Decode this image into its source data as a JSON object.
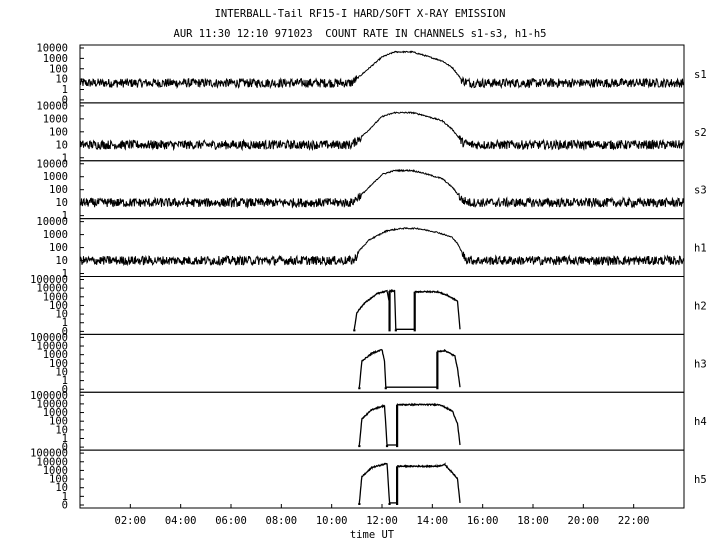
{
  "chart_data": {
    "type": "line",
    "title_line1": "INTERBALL-Tail RF15-I HARD/SOFT X-RAY EMISSION",
    "title_line2": "AUR 11:30 12:10 971023  COUNT RATE IN CHANNELS s1-s3, h1-h5",
    "xlabel": "time UT",
    "x_tick_labels": [
      "02:00",
      "04:00",
      "06:00",
      "08:00",
      "10:00",
      "12:00",
      "14:00",
      "16:00",
      "18:00",
      "20:00",
      "22:00"
    ],
    "x_ticks_hours": [
      2,
      4,
      6,
      8,
      10,
      12,
      14,
      16,
      18,
      20,
      22
    ],
    "xlim_hours": [
      0,
      24
    ],
    "y_scale": "log",
    "panels": [
      {
        "name": "s1",
        "ylim": [
          1,
          10000
        ],
        "y_tick_labels": [
          "10000",
          "1000",
          "100",
          "10",
          "1",
          "0"
        ],
        "profile": [
          [
            0,
            20
          ],
          [
            10.8,
            20
          ],
          [
            11.4,
            200
          ],
          [
            12.0,
            2000
          ],
          [
            12.5,
            5000
          ],
          [
            13.2,
            5000
          ],
          [
            13.6,
            3000
          ],
          [
            14.4,
            1000
          ],
          [
            14.8,
            300
          ],
          [
            15.2,
            30
          ],
          [
            15.5,
            20
          ],
          [
            24,
            20
          ]
        ]
      },
      {
        "name": "s2",
        "ylim": [
          1,
          10000
        ],
        "y_tick_labels": [
          "10000",
          "1000",
          "100",
          "10",
          "1"
        ],
        "profile": [
          [
            0,
            10
          ],
          [
            10.8,
            10
          ],
          [
            11.4,
            100
          ],
          [
            12.0,
            1500
          ],
          [
            12.5,
            3000
          ],
          [
            13.2,
            3000
          ],
          [
            13.6,
            2000
          ],
          [
            14.4,
            700
          ],
          [
            14.8,
            150
          ],
          [
            15.2,
            15
          ],
          [
            15.5,
            10
          ],
          [
            24,
            10
          ]
        ]
      },
      {
        "name": "s3",
        "ylim": [
          1,
          10000
        ],
        "y_tick_labels": [
          "10000",
          "1000",
          "100",
          "10",
          "1"
        ],
        "profile": [
          [
            0,
            10
          ],
          [
            10.8,
            10
          ],
          [
            11.4,
            100
          ],
          [
            12.0,
            1500
          ],
          [
            12.5,
            3000
          ],
          [
            13.2,
            3000
          ],
          [
            13.6,
            2000
          ],
          [
            14.4,
            700
          ],
          [
            14.8,
            150
          ],
          [
            15.2,
            15
          ],
          [
            15.5,
            10
          ],
          [
            24,
            10
          ]
        ]
      },
      {
        "name": "h1",
        "ylim": [
          1,
          10000
        ],
        "y_tick_labels": [
          "10000",
          "1000",
          "100",
          "10",
          "1"
        ],
        "profile": [
          [
            0,
            10
          ],
          [
            10.9,
            10
          ],
          [
            11.1,
            60
          ],
          [
            11.5,
            400
          ],
          [
            12.2,
            2000
          ],
          [
            12.8,
            3000
          ],
          [
            13.4,
            3000
          ],
          [
            14.2,
            1500
          ],
          [
            14.8,
            600
          ],
          [
            15.0,
            200
          ],
          [
            15.3,
            15
          ],
          [
            15.6,
            10
          ],
          [
            24,
            10
          ]
        ]
      },
      {
        "name": "h2",
        "ylim": [
          0.3,
          100000
        ],
        "y_tick_labels": [
          "100000",
          "10000",
          "1000",
          "100",
          "10",
          "1",
          "0"
        ],
        "segments": [
          [
            [
              10.9,
              0.5
            ],
            [
              11.0,
              30
            ],
            [
              11.3,
              300
            ],
            [
              11.8,
              3000
            ],
            [
              12.2,
              6000
            ],
            [
              12.3,
              300
            ]
          ],
          [
            [
              12.3,
              6000
            ],
            [
              12.5,
              6000
            ],
            [
              12.55,
              0.5
            ]
          ],
          [
            [
              12.55,
              0.5
            ],
            [
              13.3,
              0.5
            ]
          ],
          [
            [
              13.3,
              5000
            ],
            [
              14.2,
              5000
            ],
            [
              14.6,
              2000
            ],
            [
              15.0,
              500
            ],
            [
              15.1,
              0.5
            ]
          ]
        ]
      },
      {
        "name": "h3",
        "ylim": [
          0.3,
          100000
        ],
        "y_tick_labels": [
          "100000",
          "10000",
          "1000",
          "100",
          "10",
          "1",
          "0"
        ],
        "segments": [
          [
            [
              11.1,
              0.5
            ],
            [
              11.2,
              300
            ],
            [
              11.6,
              2000
            ],
            [
              12.0,
              5000
            ],
            [
              12.1,
              300
            ],
            [
              12.15,
              0.5
            ]
          ],
          [
            [
              12.15,
              0.5
            ],
            [
              14.2,
              0.5
            ]
          ],
          [
            [
              14.2,
              3000
            ],
            [
              14.5,
              4000
            ],
            [
              14.9,
              1000
            ],
            [
              15.0,
              50
            ],
            [
              15.1,
              0.5
            ]
          ]
        ]
      },
      {
        "name": "h4",
        "ylim": [
          0.3,
          100000
        ],
        "y_tick_labels": [
          "100000",
          "10000",
          "1000",
          "100",
          "10",
          "1",
          "0"
        ],
        "segments": [
          [
            [
              11.1,
              0.5
            ],
            [
              11.2,
              300
            ],
            [
              11.6,
              3000
            ],
            [
              12.1,
              8000
            ],
            [
              12.2,
              0.5
            ]
          ],
          [
            [
              12.2,
              0.5
            ],
            [
              12.6,
              0.5
            ]
          ],
          [
            [
              12.6,
              10000
            ],
            [
              14.3,
              10000
            ],
            [
              14.8,
              2000
            ],
            [
              15.0,
              100
            ],
            [
              15.1,
              0.5
            ]
          ]
        ]
      },
      {
        "name": "h5",
        "ylim": [
          0.3,
          100000
        ],
        "y_tick_labels": [
          "100000",
          "10000",
          "1000",
          "100",
          "10",
          "1",
          "0"
        ],
        "segments": [
          [
            [
              11.1,
              0.5
            ],
            [
              11.2,
              300
            ],
            [
              11.6,
              3000
            ],
            [
              12.2,
              8000
            ],
            [
              12.3,
              0.5
            ]
          ],
          [
            [
              12.3,
              0.5
            ],
            [
              12.6,
              0.5
            ]
          ],
          [
            [
              12.6,
              4000
            ],
            [
              14.2,
              4000
            ],
            [
              14.5,
              6000
            ],
            [
              15.0,
              200
            ],
            [
              15.1,
              0.5
            ]
          ]
        ]
      }
    ]
  }
}
